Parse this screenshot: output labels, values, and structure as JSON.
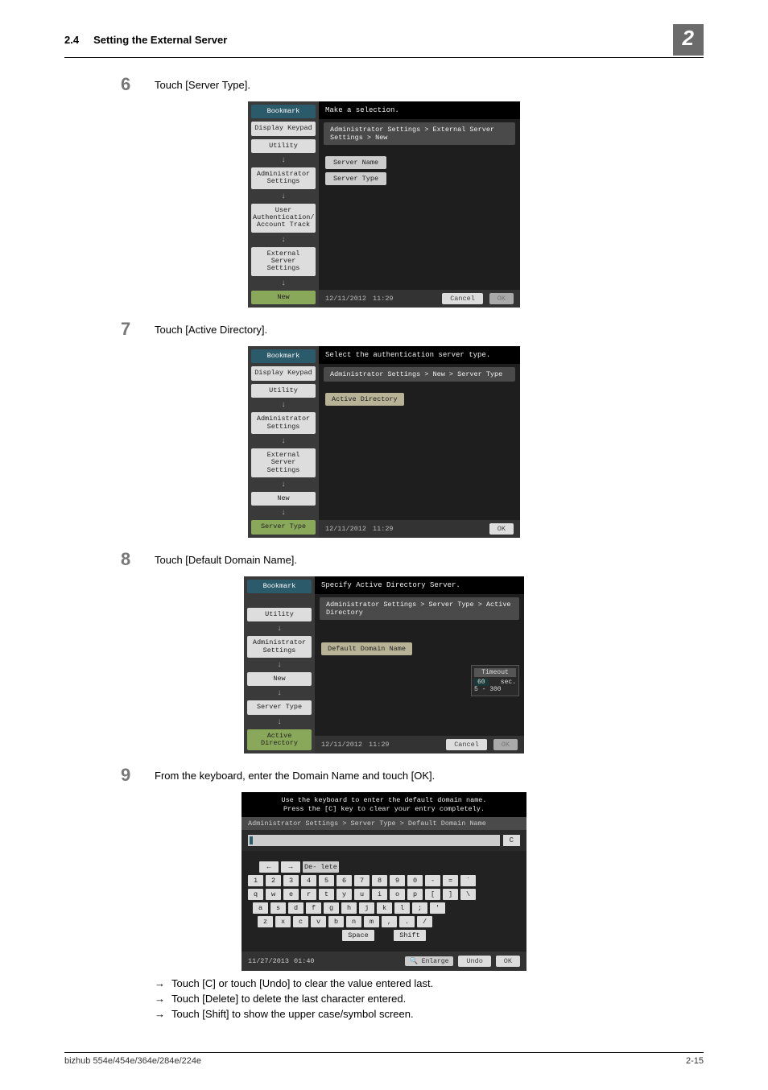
{
  "header": {
    "section_num": "2.4",
    "section_title": "Setting the External Server",
    "chapter_badge": "2"
  },
  "steps": {
    "s6": {
      "num": "6",
      "text": "Touch [Server Type]."
    },
    "s7": {
      "num": "7",
      "text": "Touch [Active Directory]."
    },
    "s8": {
      "num": "8",
      "text": "Touch [Default Domain Name]."
    },
    "s9": {
      "num": "9",
      "text": "From the keyboard, enter the Domain Name and touch [OK]."
    }
  },
  "bullets": {
    "b1": "Touch [C] or touch [Undo] to clear the value entered last.",
    "b2": "Touch [Delete] to delete the last character entered.",
    "b3": "Touch [Shift] to show the upper case/symbol screen."
  },
  "panel6": {
    "top_msg": "Make a selection.",
    "crumb": "Administrator Settings > External Server Settings > New",
    "sidebar": [
      "Bookmark",
      "Display Keypad",
      "Utility",
      "Administrator Settings",
      "User Authentication/ Account Track",
      "External Server Settings",
      "New"
    ],
    "field1": "Server Name",
    "field2": "Server Type",
    "datetime_date": "12/11/2012",
    "datetime_time": "11:29",
    "cancel": "Cancel",
    "ok": "OK"
  },
  "panel7": {
    "top_msg": "Select the authentication server type.",
    "crumb": "Administrator Settings > New > Server Type",
    "sidebar": [
      "Bookmark",
      "Display Keypad",
      "Utility",
      "Administrator Settings",
      "External Server Settings",
      "New",
      "Server Type"
    ],
    "btn": "Active Directory",
    "datetime_date": "12/11/2012",
    "datetime_time": "11:29",
    "ok": "OK"
  },
  "panel8": {
    "top_msg": "Specify Active Directory Server.",
    "crumb": "Administrator Settings > Server Type > Active Directory",
    "sidebar": [
      "Bookmark",
      "",
      "Utility",
      "Administrator Settings",
      "New",
      "Server Type",
      "Active Directory"
    ],
    "btn": "Default Domain Name",
    "timeout_label": "Timeout",
    "timeout_val": "60",
    "timeout_unit": "sec.",
    "timeout_range": "5 - 300",
    "datetime_date": "12/11/2012",
    "datetime_time": "11:29",
    "cancel": "Cancel",
    "ok": "OK"
  },
  "kb": {
    "top_msg1": "Use the keyboard to enter the default domain name.",
    "top_msg2": "Press the [C] key to clear your entry completely.",
    "crumb": "Administrator Settings > Server Type > Default Domain Name",
    "c": "C",
    "delete": "De- lete",
    "row1": [
      "1",
      "2",
      "3",
      "4",
      "5",
      "6",
      "7",
      "8",
      "9",
      "0",
      "-",
      "=",
      "`"
    ],
    "row2": [
      "q",
      "w",
      "e",
      "r",
      "t",
      "y",
      "u",
      "i",
      "o",
      "p",
      "[",
      "]",
      "\\"
    ],
    "row3": [
      "a",
      "s",
      "d",
      "f",
      "g",
      "h",
      "j",
      "k",
      "l",
      ";",
      "'"
    ],
    "row4": [
      "z",
      "x",
      "c",
      "v",
      "b",
      "n",
      "m",
      ",",
      ".",
      "/"
    ],
    "space": "Space",
    "shift": "Shift",
    "datetime_date": "11/27/2013",
    "datetime_time": "01:40",
    "enlarge": "Enlarge",
    "undo": "Undo",
    "ok": "OK"
  },
  "footer": {
    "model": "bizhub 554e/454e/364e/284e/224e",
    "page": "2-15"
  },
  "colors": {
    "badge_bg": "#6b6b6b",
    "step_num": "#777777",
    "bookmark_bg": "#2b5a6a",
    "green_bg": "#8aa85a",
    "panel_bg": "#111111",
    "sidebar_bg": "#3a3a3a"
  }
}
